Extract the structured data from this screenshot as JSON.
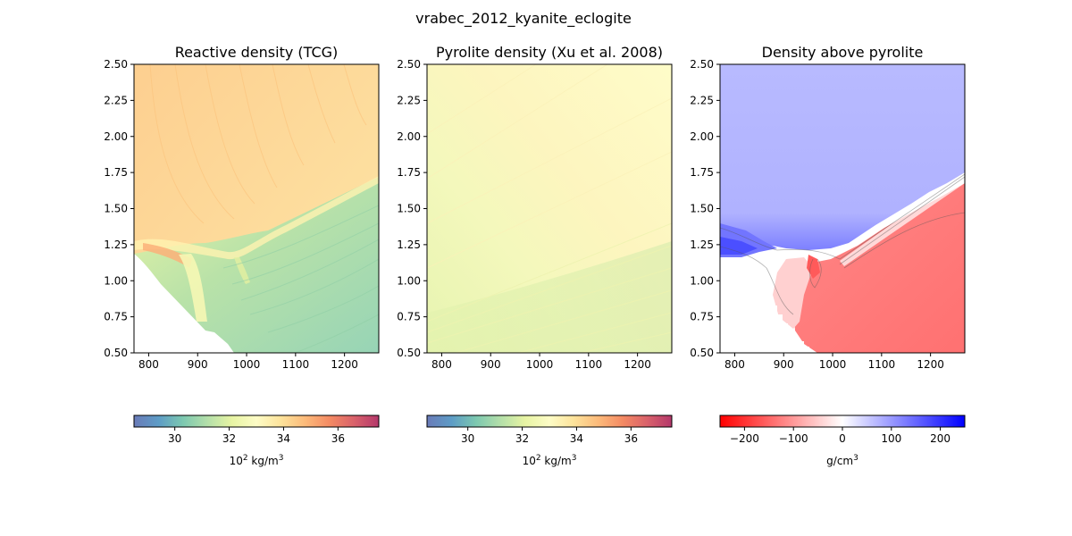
{
  "figure": {
    "suptitle": "vrabec_2012_kyanite_eclogite"
  },
  "chart_data": [
    {
      "type": "heatmap",
      "title": "Reactive density (TCG)",
      "x_ticks": [
        "800",
        "900",
        "1000",
        "1100",
        "1200"
      ],
      "y_ticks": [
        "0.50",
        "0.75",
        "1.00",
        "1.25",
        "1.50",
        "1.75",
        "2.00",
        "2.25",
        "2.50"
      ],
      "xlim": [
        770,
        1270
      ],
      "ylim": [
        0.5,
        2.5
      ],
      "colormap": "Spectral_r",
      "colorbar": {
        "ticks": [
          "30",
          "32",
          "34",
          "36"
        ],
        "label_base": "10",
        "label_exp": "2",
        "label_unit": " kg/m",
        "label_unit_exp": "3",
        "range": [
          28.5,
          37.5
        ]
      }
    },
    {
      "type": "heatmap",
      "title": "Pyrolite density (Xu et al. 2008)",
      "x_ticks": [
        "800",
        "900",
        "1000",
        "1100",
        "1200"
      ],
      "y_ticks": [
        "0.50",
        "0.75",
        "1.00",
        "1.25",
        "1.50",
        "1.75",
        "2.00",
        "2.25",
        "2.50"
      ],
      "xlim": [
        770,
        1270
      ],
      "ylim": [
        0.5,
        2.5
      ],
      "colormap": "Spectral_r",
      "colorbar": {
        "ticks": [
          "30",
          "32",
          "34",
          "36"
        ],
        "label_base": "10",
        "label_exp": "2",
        "label_unit": " kg/m",
        "label_unit_exp": "3",
        "range": [
          28.5,
          37.5
        ]
      }
    },
    {
      "type": "heatmap",
      "title": "Density above pyrolite",
      "x_ticks": [
        "800",
        "900",
        "1000",
        "1100",
        "1200"
      ],
      "y_ticks": [
        "0.50",
        "0.75",
        "1.00",
        "1.25",
        "1.50",
        "1.75",
        "2.00",
        "2.25",
        "2.50"
      ],
      "xlim": [
        770,
        1270
      ],
      "ylim": [
        0.5,
        2.5
      ],
      "colormap": "bwr_r",
      "colorbar": {
        "ticks": [
          "−200",
          "−100",
          "0",
          "100",
          "200"
        ],
        "label_base": "",
        "label_exp": "",
        "label_unit": "g/cm",
        "label_unit_exp": "3",
        "range": [
          -250,
          250
        ]
      }
    }
  ],
  "colors": {
    "spectral": [
      "#5e4fa2",
      "#3288bd",
      "#66c2a5",
      "#abdda4",
      "#e6f598",
      "#ffffbf",
      "#fee08b",
      "#fdae61",
      "#f46d43",
      "#d53e4f",
      "#9e0142"
    ],
    "bwr_r": [
      "#ff0000",
      "#ffffff",
      "#0000ff"
    ],
    "reactive_upper": "#fdd99a",
    "reactive_lower": "#9fd8b5",
    "pyrolite_top": "#fdfcc9",
    "pyrolite_bottom": "#d5eeb0",
    "excess_upper": "#b7b9ff",
    "excess_lower": "#ff7a7a"
  }
}
